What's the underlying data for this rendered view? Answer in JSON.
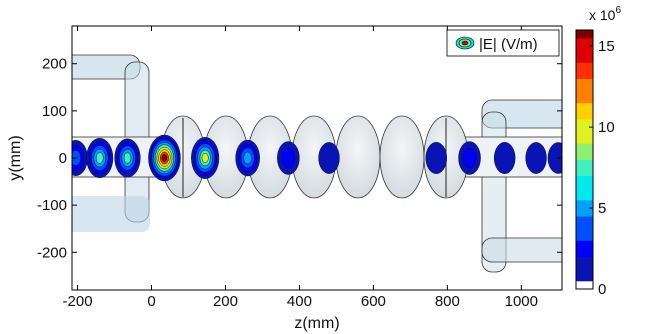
{
  "chart_data": {
    "type": "heatmap",
    "title": "",
    "xlabel": "z(mm)",
    "ylabel": "y(mm)",
    "xlim": [
      -215,
      1110
    ],
    "ylim": [
      -280,
      280
    ],
    "xticks": [
      -200,
      0,
      200,
      400,
      600,
      800,
      1000
    ],
    "xtick_labels": [
      "-200",
      "0",
      "200",
      "400",
      "600",
      "800",
      "1000"
    ],
    "yticks": [
      -200,
      -100,
      0,
      100,
      200
    ],
    "ytick_labels": [
      "-200",
      "-100",
      "0",
      "100",
      "200"
    ],
    "legend": {
      "label": "|E| (V/m)",
      "position": "top-right"
    },
    "colorbar": {
      "exponent_label": "x 10",
      "exponent_power": "6",
      "range": [
        0,
        16
      ],
      "ticks": [
        0,
        5,
        10,
        15
      ],
      "tick_labels": [
        "0",
        "5",
        "10",
        "15"
      ]
    },
    "field_spots": [
      {
        "z": -205,
        "y": 0,
        "peak": 4.5
      },
      {
        "z": -140,
        "y": 0,
        "peak": 8.0
      },
      {
        "z": -65,
        "y": 0,
        "peak": 7.0
      },
      {
        "z": 35,
        "y": 0,
        "peak": 15.5
      },
      {
        "z": 145,
        "y": 0,
        "peak": 9.5
      },
      {
        "z": 260,
        "y": 0,
        "peak": 5.0
      },
      {
        "z": 370,
        "y": 0,
        "peak": 2.5
      },
      {
        "z": 480,
        "y": 0,
        "peak": 1.0
      },
      {
        "z": 770,
        "y": 0,
        "peak": 1.2
      },
      {
        "z": 860,
        "y": 0,
        "peak": 2.5
      },
      {
        "z": 955,
        "y": 0,
        "peak": 1.2
      },
      {
        "z": 1040,
        "y": 0,
        "peak": 1.0
      },
      {
        "z": 1100,
        "y": 0,
        "peak": 0.9
      }
    ],
    "colors": {
      "colormap": [
        "#ffffff",
        "#0a14b4",
        "#0000ff",
        "#0050ff",
        "#00a0ff",
        "#00e8f0",
        "#40f0c0",
        "#90f070",
        "#e0f020",
        "#ffd000",
        "#ff8000",
        "#ff3000",
        "#e00000",
        "#7a0000"
      ],
      "structure_fill": "#d8e4ea",
      "structure_stroke": "#333333"
    }
  }
}
